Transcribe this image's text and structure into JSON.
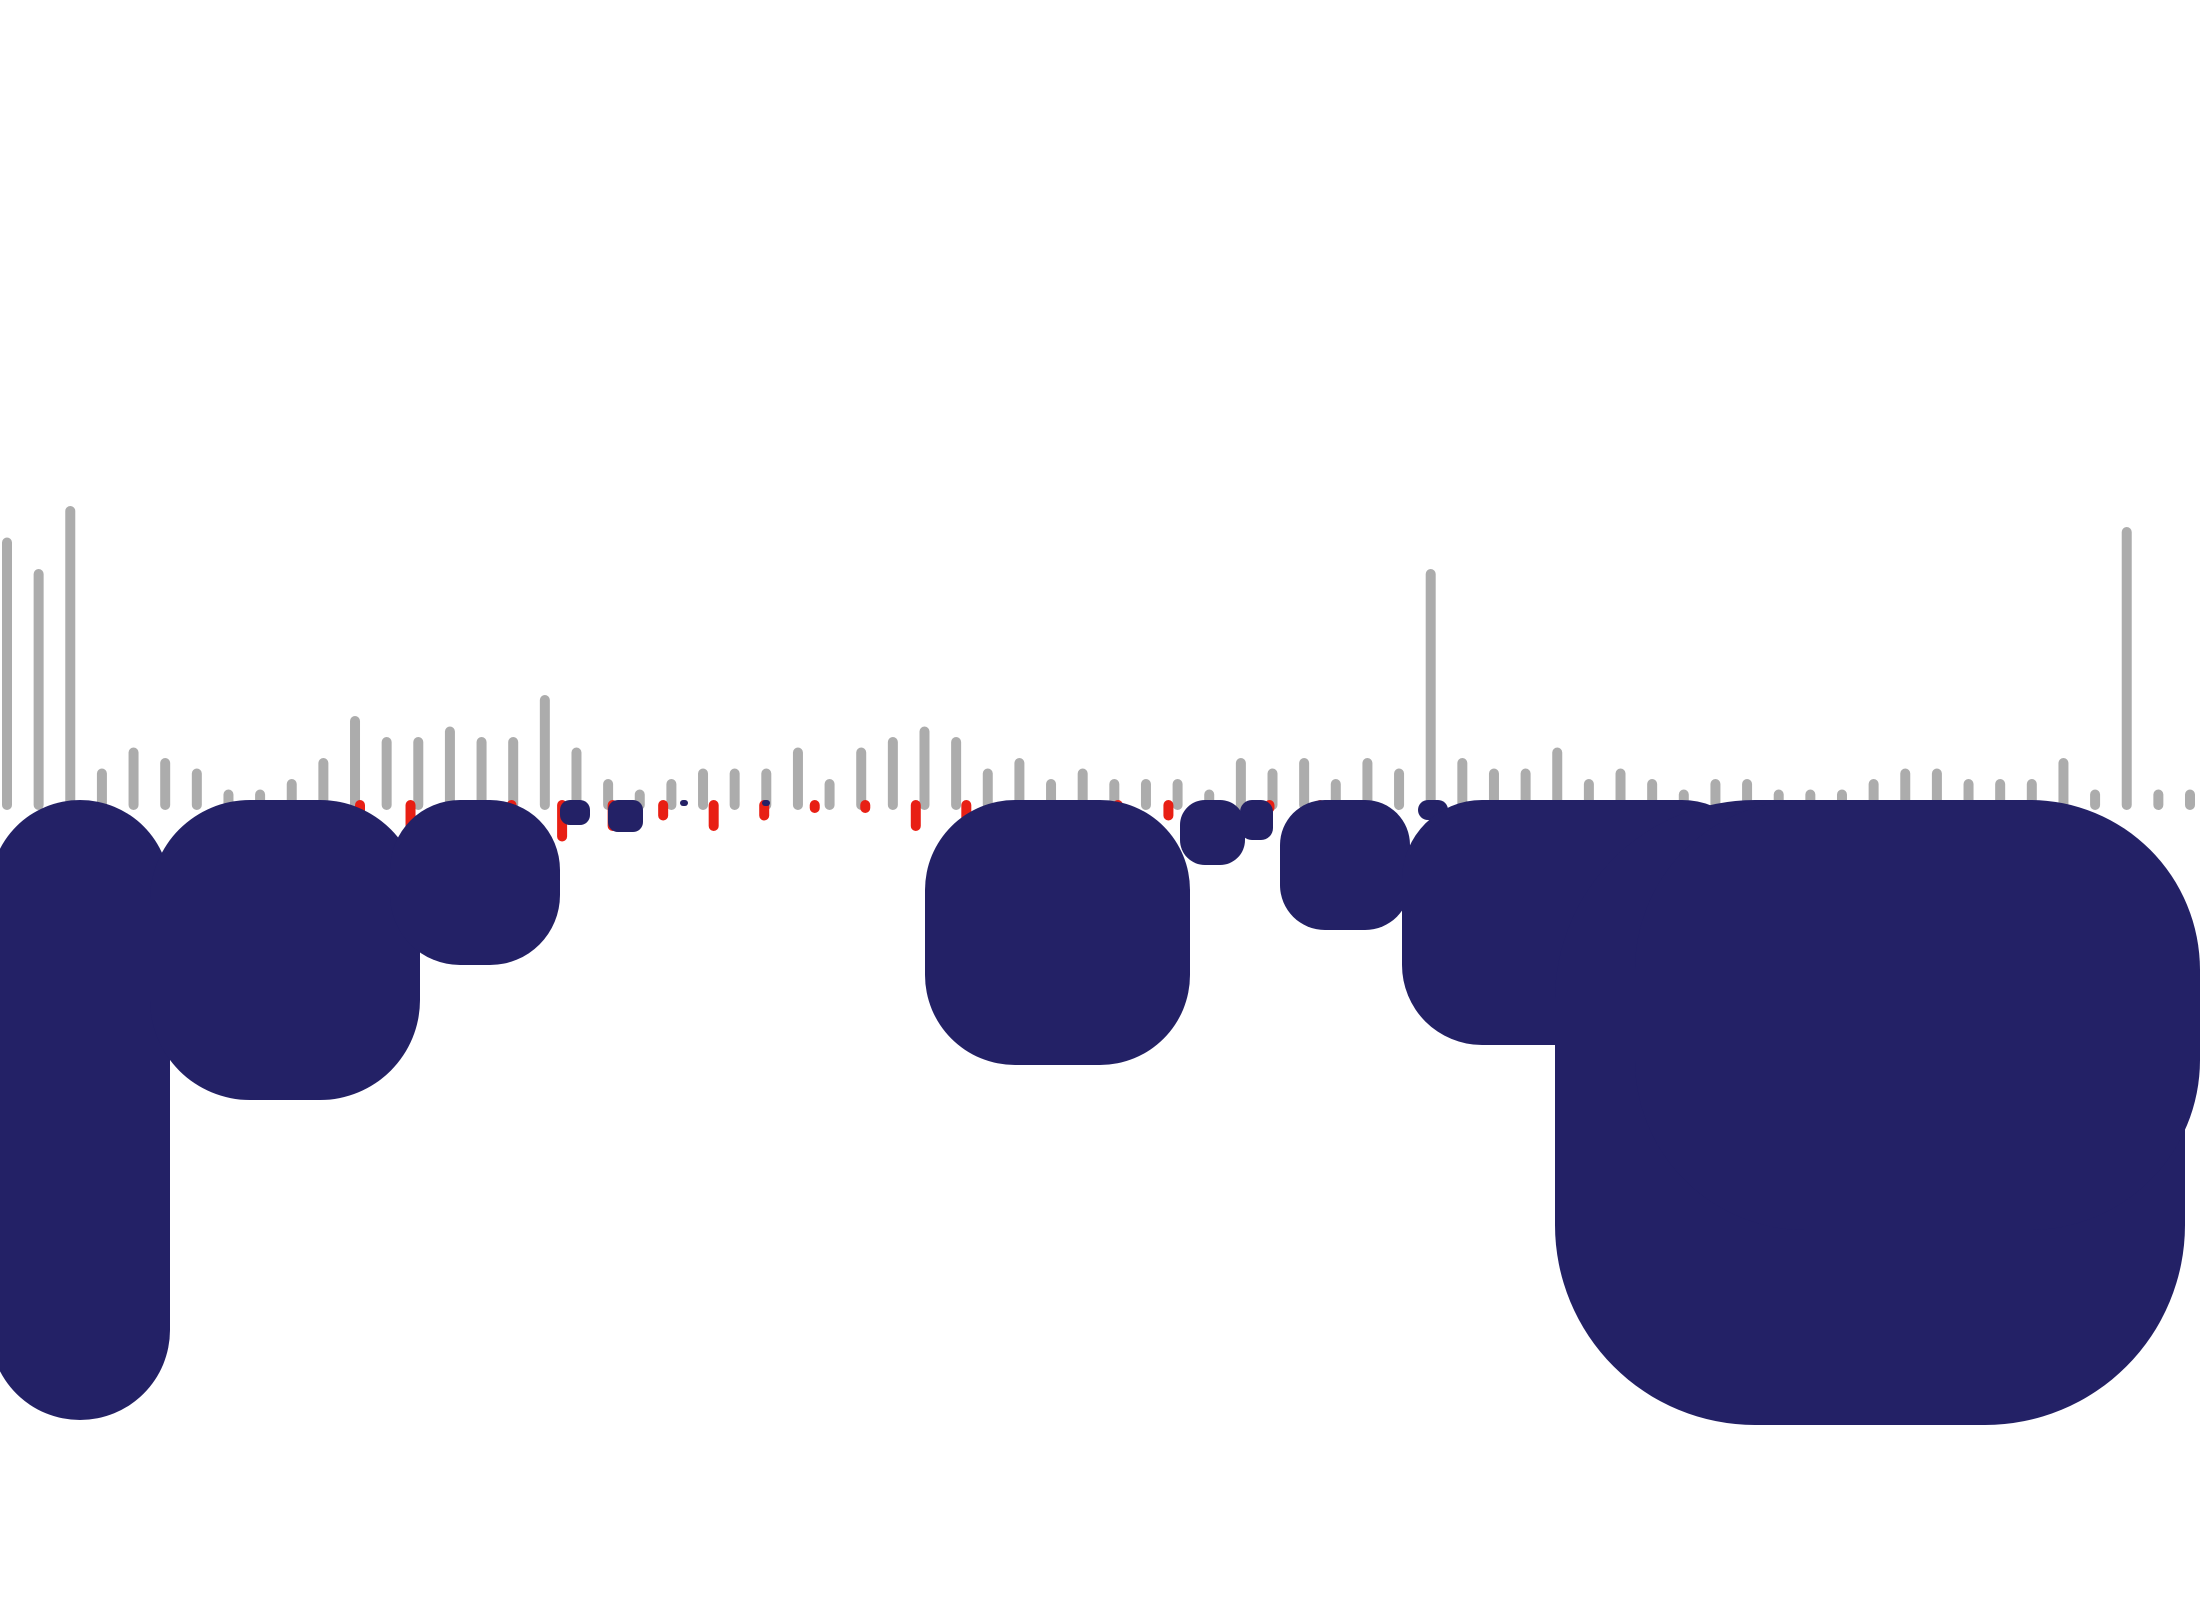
{
  "chart_data": {
    "type": "bar",
    "grid": false,
    "legend": "none",
    "colors": {
      "up": "#acacac",
      "down": "#e81f14",
      "blob": "#232166",
      "background": "#ffffff"
    },
    "series": [
      {
        "color": "#acacac",
        "values": [
          2.5,
          2.2,
          2.8,
          0.3,
          0.5,
          0.4,
          0.3,
          0.1,
          0.1,
          0.2,
          0.4,
          0.8,
          0.6,
          0.6,
          0.7,
          0.6,
          0.6,
          1.0,
          0.5,
          0.2,
          0.1,
          0.2,
          0.3,
          0.3,
          0.3,
          0.5,
          0.2,
          0.5,
          0.6,
          0.7,
          0.6,
          0.3,
          0.4,
          0.2,
          0.3,
          0.2,
          0.2,
          0.2,
          0.1,
          0.4,
          0.3,
          0.4,
          0.2,
          0.4,
          0.3,
          2.2,
          0.4,
          0.3,
          0.3,
          0.5,
          0.2,
          0.3,
          0.2,
          0.1,
          0.2,
          0.2,
          0.1,
          0.1,
          0.1,
          0.2,
          0.3,
          0.3,
          0.2,
          0.2,
          0.2,
          0.4,
          0.1,
          2.6,
          0.1,
          0.1
        ]
      },
      {
        "color": "#e81f14",
        "values": [
          0.2,
          0.3,
          0.1,
          0.4,
          0.3,
          0.2,
          0.1,
          0.2,
          0.1,
          0.0,
          0.0,
          0.2,
          0.2,
          0.1,
          0.1,
          0.2,
          0.1,
          0.0,
          0.0,
          0.0
        ]
      }
    ]
  }
}
